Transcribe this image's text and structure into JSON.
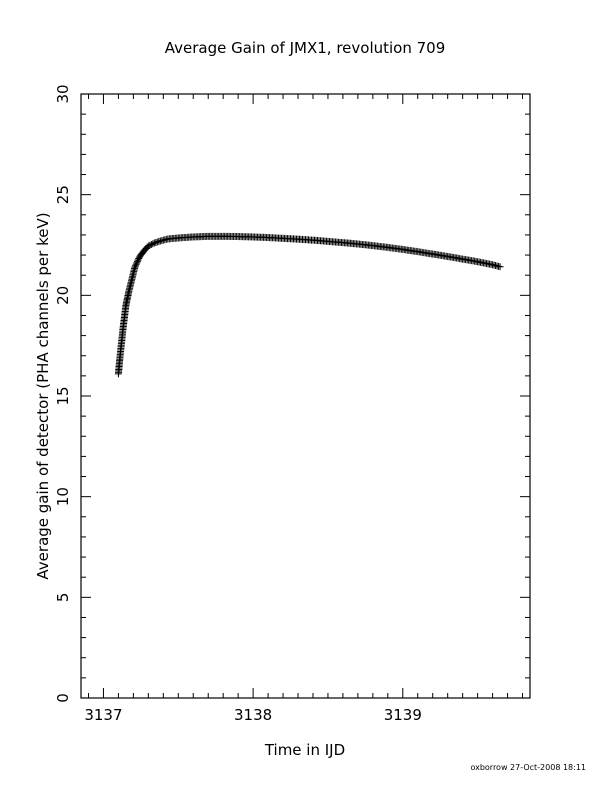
{
  "chart_data": {
    "type": "scatter",
    "title": "Average Gain of JMX1, revolution 709",
    "xlabel": "Time in IJD",
    "ylabel": "Average gain of detector (PHA channels per keV)",
    "xlim": [
      3136.85,
      3139.85
    ],
    "ylim": [
      0,
      30
    ],
    "xticks": [
      "3137",
      "3138",
      "3139"
    ],
    "yticks": [
      "0",
      "5",
      "10",
      "15",
      "20",
      "25",
      "30"
    ],
    "marker": "+",
    "marker_color": "#000000",
    "grid": false,
    "legend": "none",
    "series": [
      {
        "x": [
          3137.1,
          3137.11,
          3137.12,
          3137.13,
          3137.14,
          3137.15,
          3137.17,
          3137.19,
          3137.21,
          3137.24,
          3137.27,
          3137.3,
          3137.34,
          3137.38,
          3137.43,
          3137.5,
          3137.6,
          3137.7,
          3137.8,
          3137.9,
          3138.0,
          3138.1,
          3138.2,
          3138.3,
          3138.4,
          3138.5,
          3138.6,
          3138.7,
          3138.8,
          3138.9,
          3139.0,
          3139.1,
          3139.2,
          3139.3,
          3139.4,
          3139.5,
          3139.6,
          3139.65
        ],
        "y": [
          16.1,
          16.9,
          17.6,
          18.3,
          18.9,
          19.5,
          20.2,
          20.8,
          21.4,
          21.9,
          22.2,
          22.45,
          22.6,
          22.7,
          22.8,
          22.85,
          22.9,
          22.93,
          22.93,
          22.92,
          22.9,
          22.87,
          22.83,
          22.79,
          22.74,
          22.68,
          22.62,
          22.55,
          22.47,
          22.38,
          22.28,
          22.17,
          22.05,
          21.93,
          21.8,
          21.67,
          21.52,
          21.42
        ]
      }
    ]
  },
  "footer": {
    "credit": "oxborrow 27-Oct-2008 18:11"
  }
}
